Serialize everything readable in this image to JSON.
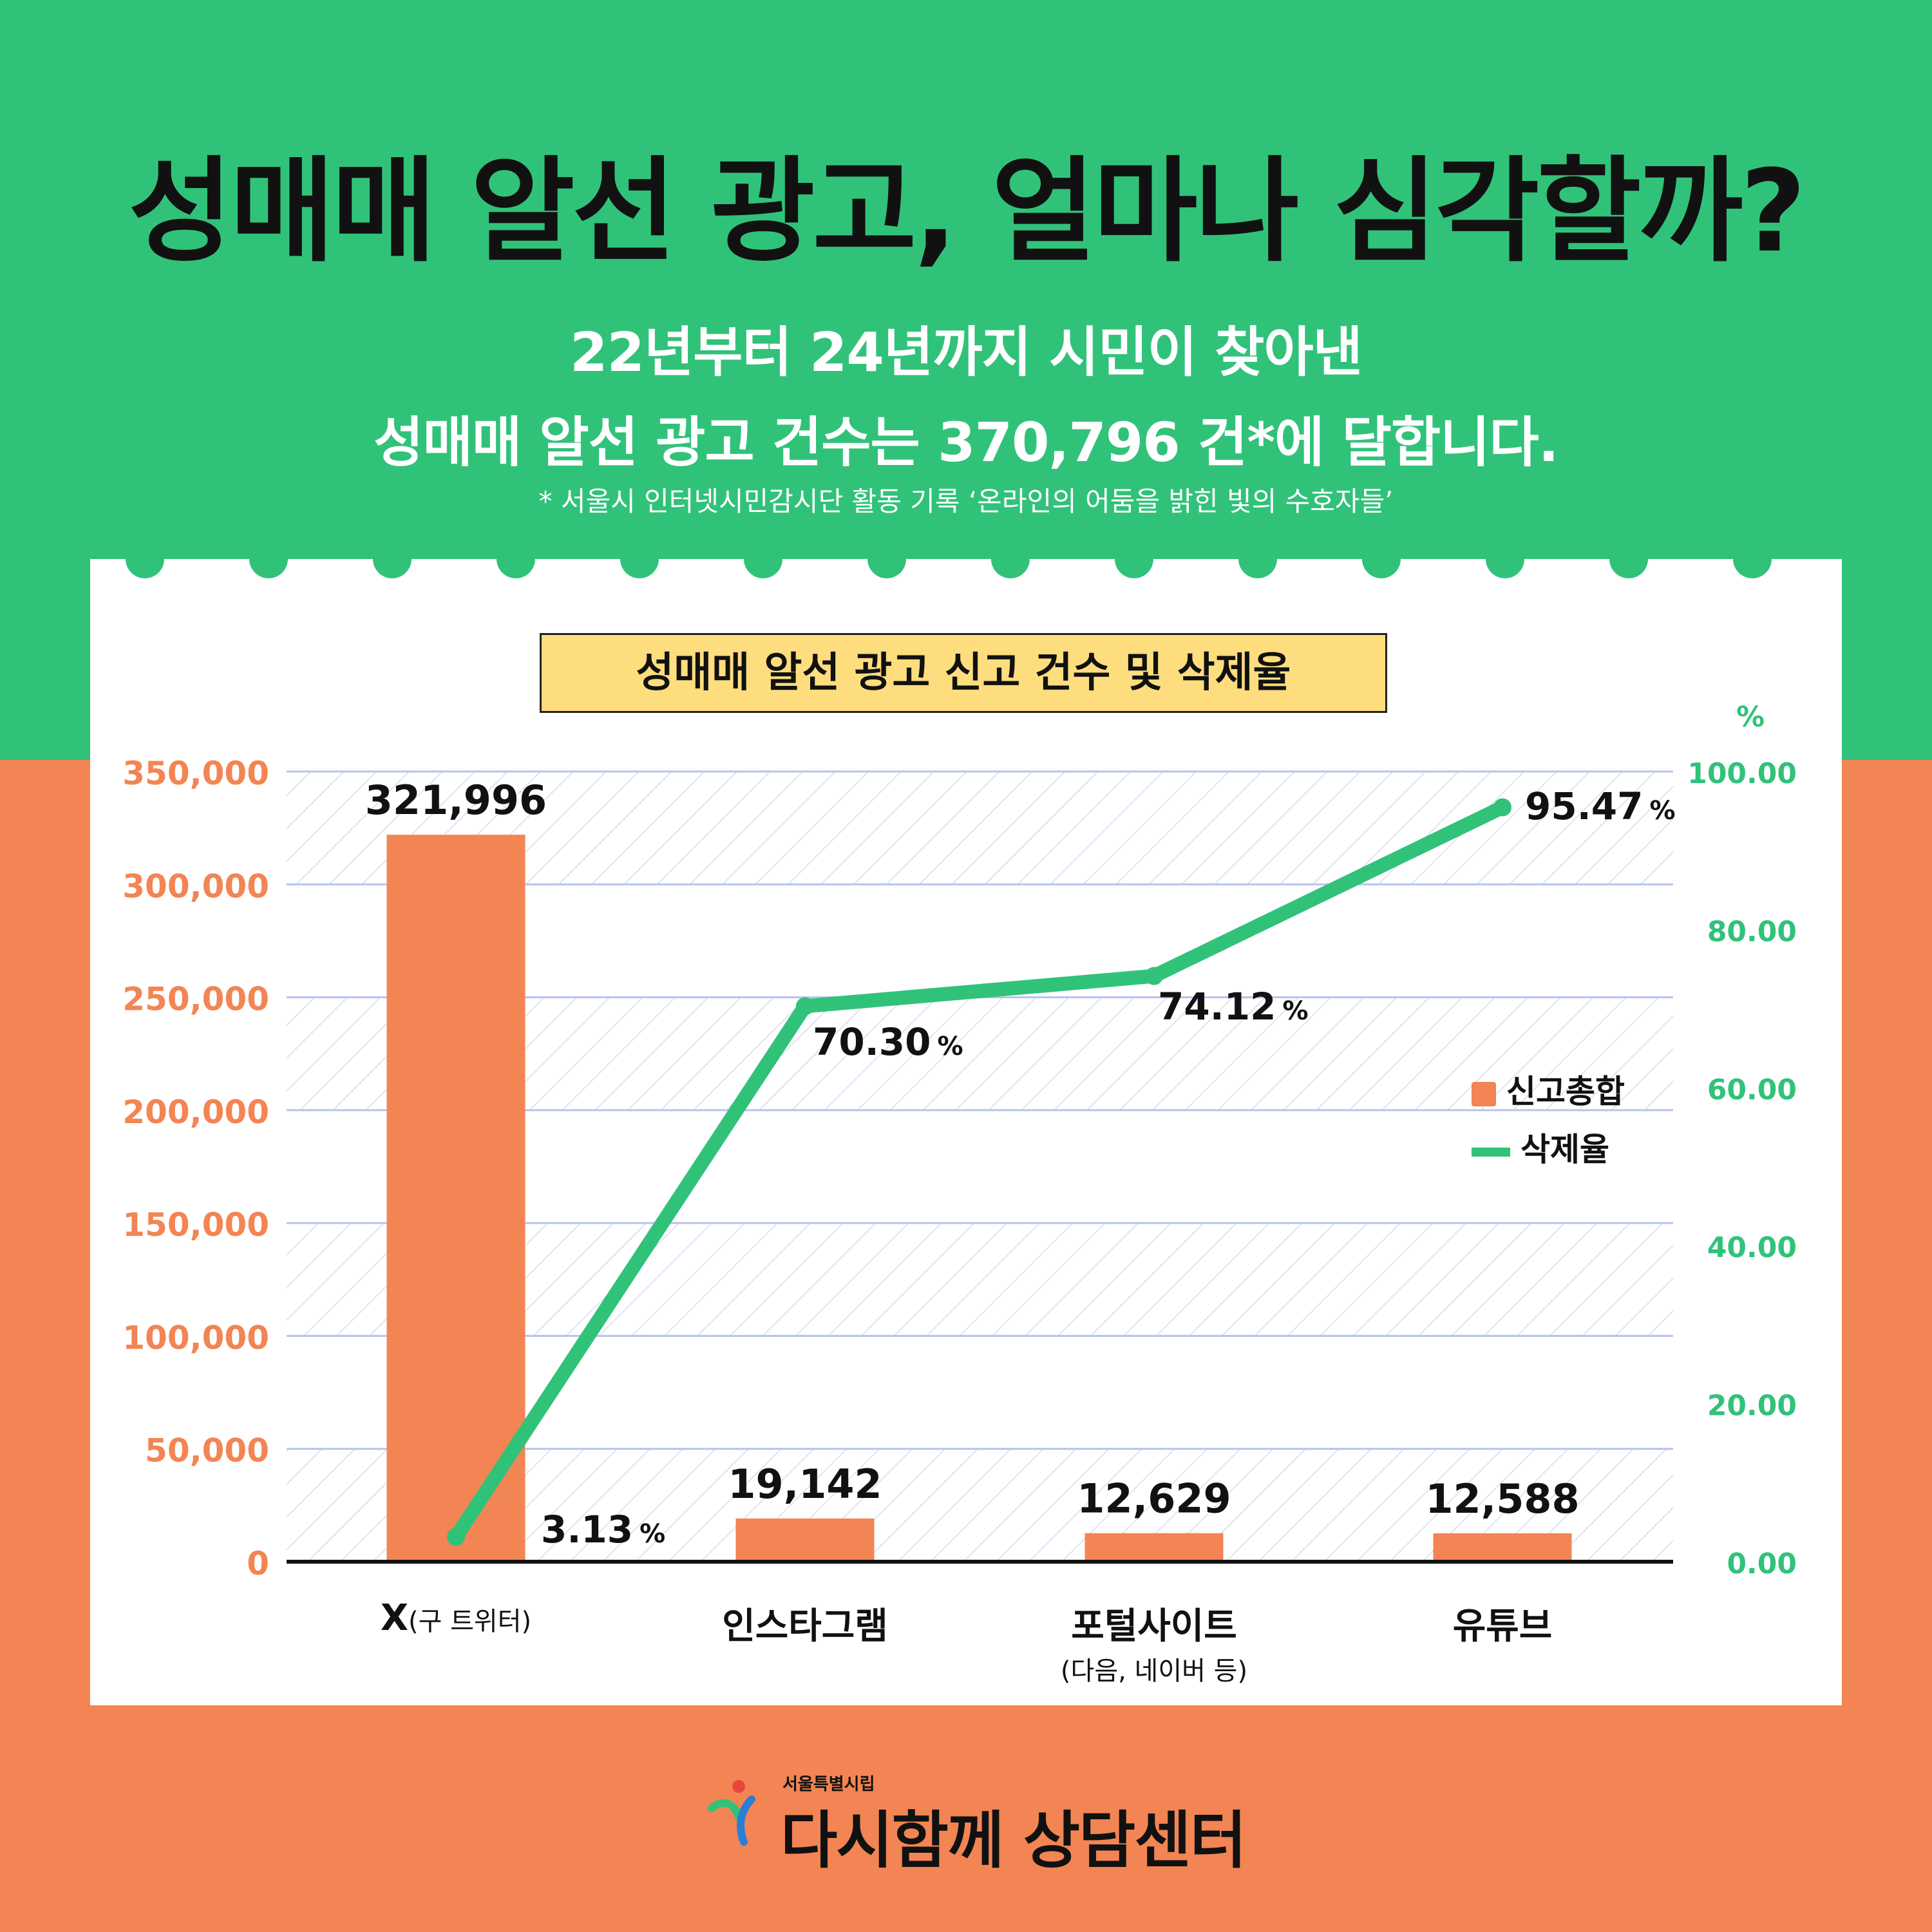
{
  "header": {
    "title": "성매매 알선 광고, 얼마나 심각할까?",
    "subtitle_line1": "22년부터 24년까지 시민이 찾아낸",
    "subtitle_line2": "성매매 알선 광고 건수는 370,796 건*에 달합니다.",
    "footnote": "* 서울시 인터넷시민감시단 활동 기록 ‘온라인의 어둠을 밝힌 빛의 수호자들’"
  },
  "chart_data": {
    "type": "bar",
    "title": "성매매 알선 광고 신고 건수 및 삭제율",
    "categories": [
      "X",
      "인스타그램",
      "포털사이트",
      "유튜브"
    ],
    "category_sublabels": [
      "(구 트위터)",
      "",
      "(다음, 네이버 등)",
      ""
    ],
    "series": [
      {
        "name": "신고총합",
        "type": "bar",
        "axis": "left",
        "values": [
          321996,
          19142,
          12629,
          12588
        ],
        "labels": [
          "321,996",
          "19,142",
          "12,629",
          "12,588"
        ],
        "color": "#f28553"
      },
      {
        "name": "삭제율",
        "type": "line",
        "axis": "right",
        "values": [
          3.13,
          70.3,
          74.12,
          95.47
        ],
        "labels": [
          "3.13",
          "70.30",
          "74.12",
          "95.47"
        ],
        "color": "#31c27a"
      }
    ],
    "left_axis": {
      "ylim": [
        0,
        350000
      ],
      "ticks": [
        "0",
        "50,000",
        "100,000",
        "150,000",
        "200,000",
        "250,000",
        "300,000",
        "350,000"
      ],
      "color": "#f28553"
    },
    "right_axis": {
      "ylim": [
        0,
        100
      ],
      "unit": "%",
      "ticks": [
        "0.00",
        "20.00",
        "40.00",
        "60.00",
        "80.00",
        "100.00"
      ],
      "color": "#31c27a"
    },
    "percent_sign": "%",
    "grid": true,
    "legend": "right"
  },
  "footer": {
    "org_small": "서울특별시립",
    "org_name": "다시함께 상담센터"
  }
}
